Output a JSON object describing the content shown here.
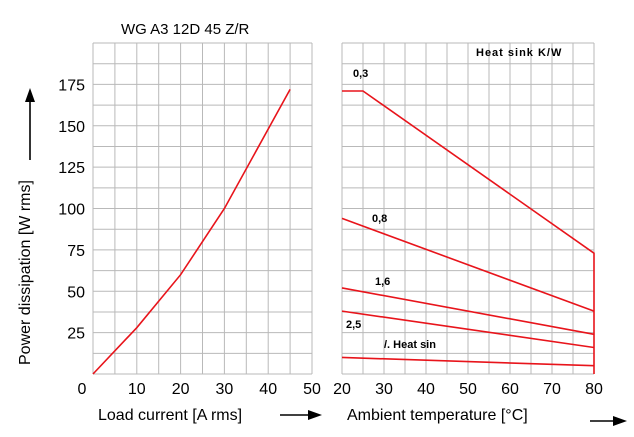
{
  "chart_data": {
    "title": "WG A3 12D 45 Z/R",
    "ylabel": "Power dissipation [W rms]",
    "ylim": [
      0,
      200
    ],
    "yticks": [
      "25",
      "50",
      "75",
      "100",
      "125",
      "150",
      "175"
    ],
    "y_zero_label": "0",
    "left": {
      "type": "line",
      "xlabel": "Load current [A rms]",
      "xlim": [
        0,
        50
      ],
      "xticks": [
        "10",
        "20",
        "30",
        "40",
        "50"
      ],
      "series": [
        {
          "color": "#e8141b",
          "x": [
            0,
            10,
            20,
            30,
            45
          ],
          "y": [
            0,
            28,
            60,
            100,
            172
          ]
        }
      ]
    },
    "right": {
      "type": "line",
      "xlabel": "Ambient temperature [°C]",
      "xlim": [
        20,
        80
      ],
      "xticks": [
        "20",
        "30",
        "40",
        "50",
        "60",
        "70",
        "80"
      ],
      "legend_title": "Heat sink K/W",
      "series": [
        {
          "name": "0,3",
          "color": "#e8141b",
          "x": [
            20,
            25,
            80,
            80
          ],
          "y": [
            171,
            171,
            73,
            0
          ]
        },
        {
          "name": "0,8",
          "color": "#e8141b",
          "x": [
            20,
            80
          ],
          "y": [
            94,
            38
          ]
        },
        {
          "name": "1,6",
          "color": "#e8141b",
          "x": [
            20,
            80
          ],
          "y": [
            52,
            24
          ]
        },
        {
          "name": "2,5",
          "color": "#e8141b",
          "x": [
            20,
            80
          ],
          "y": [
            38,
            16
          ]
        },
        {
          "name": "/. Heat sin",
          "color": "#e8141b",
          "x": [
            20,
            80
          ],
          "y": [
            10,
            5
          ]
        }
      ]
    }
  }
}
